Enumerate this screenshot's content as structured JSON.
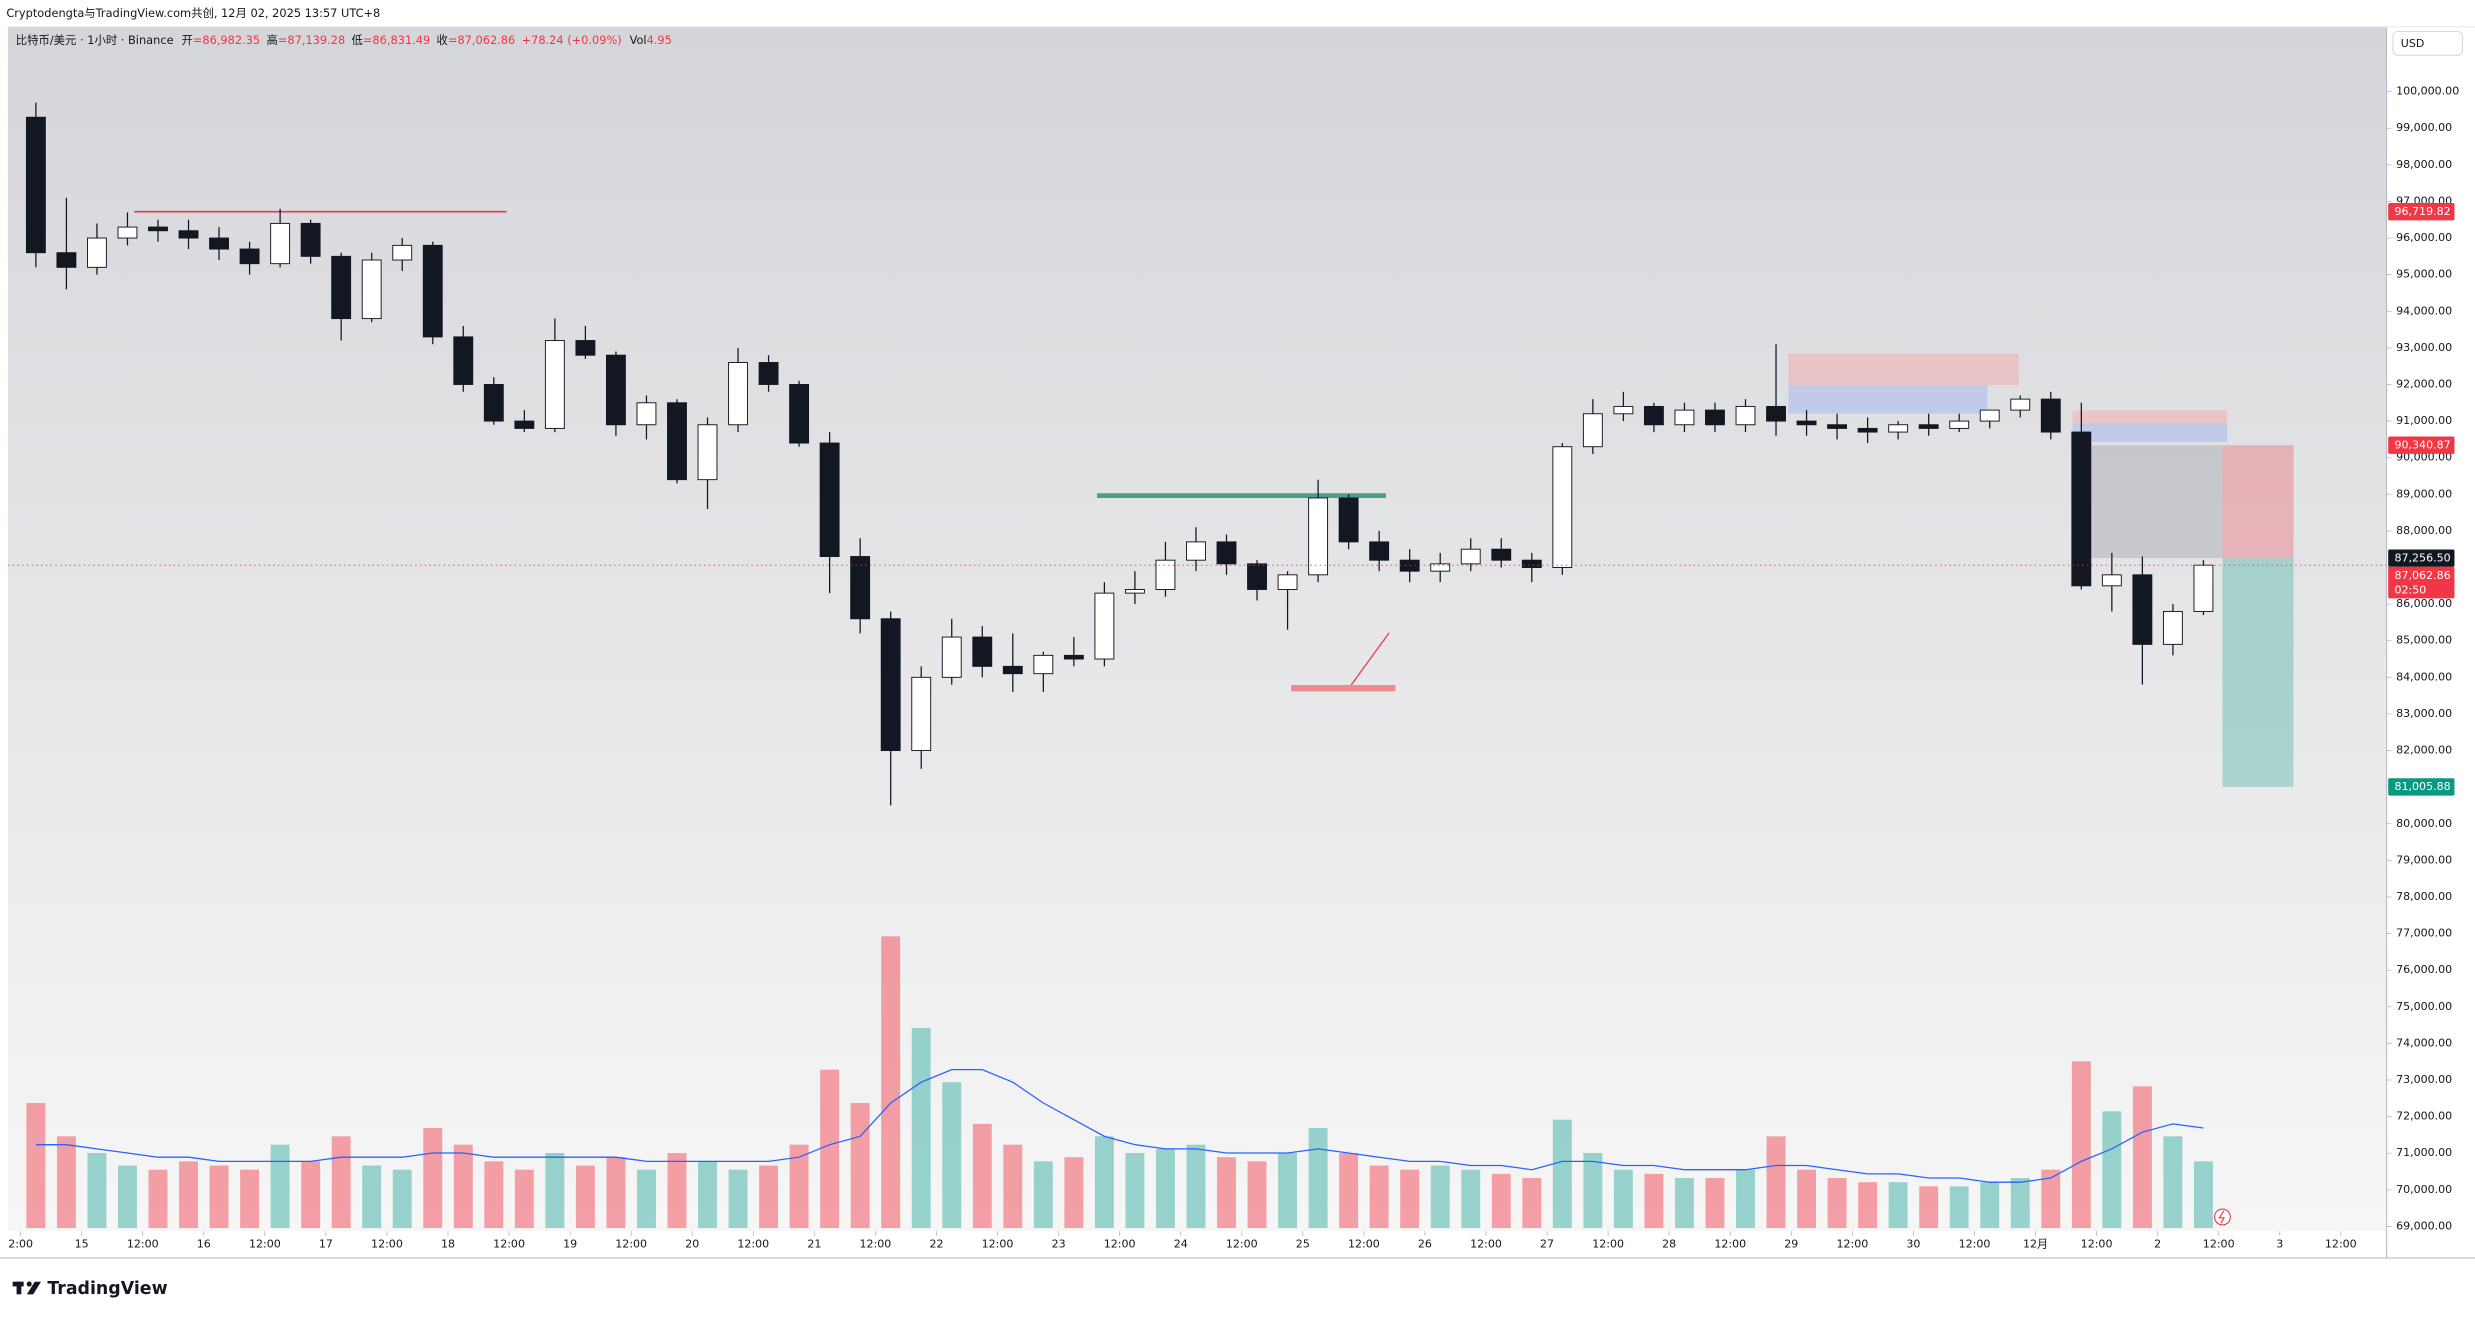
{
  "header": {
    "caption": "Cryptodengta与TradingView.com共创, 12月 02, 2025 13:57 UTC+8",
    "symbol": "比特币/美元 · 1小时 · Binance",
    "ohlc": [
      {
        "label": "开",
        "value": "=86,982.35"
      },
      {
        "label": "高",
        "value": "=87,139.28"
      },
      {
        "label": "低",
        "value": "=86,831.49"
      },
      {
        "label": "收",
        "value": "=87,062.86"
      }
    ],
    "change": "+78.24 (+0.09%)",
    "volume_label": "Vol",
    "volume_value": "4.95"
  },
  "footer": {
    "logo": "TradingView"
  },
  "chart_data": {
    "type": "candlestick",
    "currency": "USD",
    "grid": false,
    "up_color": "#ffffff",
    "down_color": "#131722",
    "wick_color": "#131722",
    "x": [
      3,
      9,
      15,
      21,
      27,
      33,
      39,
      45,
      51,
      57,
      63,
      69,
      75,
      81,
      87,
      93,
      99,
      105,
      111,
      117,
      123,
      129,
      135,
      141,
      147,
      153,
      159,
      165,
      171,
      177,
      183,
      189,
      195,
      201,
      207,
      213,
      219,
      225,
      231,
      237,
      243,
      249,
      255,
      261,
      267,
      273,
      279,
      285,
      291,
      297,
      303,
      309,
      315,
      321,
      327,
      333,
      339,
      345,
      351,
      357,
      363,
      369,
      375,
      381,
      387,
      393,
      399,
      405,
      411,
      417,
      423,
      429
    ],
    "open": [
      99300,
      95600,
      95200,
      96000,
      96300,
      96200,
      96000,
      95700,
      95300,
      96400,
      95500,
      93800,
      95400,
      95800,
      93300,
      92000,
      91000,
      90800,
      93200,
      92800,
      90900,
      91500,
      89400,
      90900,
      92600,
      92000,
      90400,
      87300,
      85600,
      82000,
      84000,
      85100,
      84300,
      84100,
      84600,
      84500,
      86300,
      86400,
      87200,
      87700,
      87100,
      86400,
      86800,
      88900,
      87700,
      87200,
      86900,
      87100,
      87500,
      87200,
      87000,
      90300,
      91200,
      91400,
      90900,
      91300,
      90900,
      91400,
      91000,
      90900,
      90800,
      90700,
      90900,
      90800,
      91000,
      91300,
      91600,
      90700,
      86500,
      86800,
      84900,
      85800
    ],
    "high": [
      99700,
      97100,
      96400,
      96700,
      96500,
      96500,
      96300,
      95900,
      96800,
      96500,
      95600,
      95600,
      96000,
      95900,
      93600,
      92200,
      91300,
      93800,
      93600,
      92900,
      91700,
      91600,
      91100,
      93000,
      92800,
      92100,
      90700,
      87800,
      85800,
      84300,
      85600,
      85400,
      85200,
      84700,
      85100,
      86600,
      86900,
      87700,
      88100,
      87900,
      87200,
      86900,
      89400,
      89000,
      88000,
      87500,
      87400,
      87800,
      87800,
      87400,
      90400,
      91600,
      91800,
      91500,
      91500,
      91500,
      91600,
      93100,
      91300,
      91200,
      91100,
      91000,
      91200,
      91200,
      91300,
      91700,
      91800,
      91500,
      87400,
      87300,
      86000,
      87200
    ],
    "low": [
      95200,
      94600,
      95000,
      95800,
      95900,
      95700,
      95400,
      95000,
      95200,
      95300,
      93200,
      93700,
      95100,
      93100,
      91800,
      90900,
      90700,
      90700,
      92700,
      90600,
      90500,
      89300,
      88600,
      90700,
      91800,
      90300,
      86300,
      85200,
      80500,
      81500,
      83800,
      84000,
      83600,
      83600,
      84300,
      84300,
      86000,
      86200,
      86900,
      86800,
      86100,
      85300,
      86600,
      87500,
      86900,
      86600,
      86600,
      86900,
      87000,
      86600,
      86800,
      90100,
      91000,
      90700,
      90700,
      90700,
      90700,
      90600,
      90600,
      90500,
      90400,
      90500,
      90600,
      90700,
      90800,
      91100,
      90500,
      86400,
      85800,
      83800,
      84600,
      85700
    ],
    "close": [
      95600,
      95200,
      96000,
      96300,
      96200,
      96000,
      95700,
      95300,
      96400,
      95500,
      93800,
      95400,
      95800,
      93300,
      92000,
      91000,
      90800,
      93200,
      92800,
      90900,
      91500,
      89400,
      90900,
      92600,
      92000,
      90400,
      87300,
      85600,
      82000,
      84000,
      85100,
      84300,
      84100,
      84600,
      84500,
      86300,
      86400,
      87200,
      87700,
      87100,
      86400,
      86800,
      88900,
      87700,
      87200,
      86900,
      87100,
      87500,
      87200,
      87000,
      90300,
      91200,
      91400,
      90900,
      91300,
      90900,
      91400,
      91000,
      90900,
      90800,
      90700,
      90900,
      90800,
      91000,
      91300,
      91600,
      90700,
      86500,
      86800,
      84900,
      85800,
      87062.86
    ],
    "volume": {
      "values": [
        30,
        22,
        18,
        15,
        14,
        16,
        15,
        14,
        20,
        16,
        22,
        15,
        14,
        24,
        20,
        16,
        14,
        18,
        15,
        17,
        14,
        18,
        16,
        14,
        15,
        20,
        38,
        30,
        70,
        48,
        35,
        25,
        20,
        16,
        17,
        22,
        18,
        19,
        20,
        17,
        16,
        18,
        24,
        18,
        15,
        14,
        15,
        14,
        13,
        12,
        26,
        18,
        14,
        13,
        12,
        12,
        14,
        22,
        14,
        12,
        11,
        11,
        10,
        10,
        11,
        12,
        14,
        40,
        28,
        34,
        22,
        16
      ],
      "ma": [
        20,
        20,
        19,
        18,
        17,
        17,
        16,
        16,
        16,
        16,
        17,
        17,
        17,
        18,
        18,
        17,
        17,
        17,
        17,
        17,
        16,
        16,
        16,
        16,
        16,
        17,
        20,
        22,
        30,
        35,
        38,
        38,
        35,
        30,
        26,
        22,
        20,
        19,
        19,
        18,
        18,
        18,
        19,
        18,
        17,
        16,
        16,
        15,
        15,
        14,
        16,
        16,
        15,
        15,
        14,
        14,
        14,
        15,
        15,
        14,
        13,
        13,
        12,
        12,
        11,
        11,
        12,
        16,
        19,
        23,
        25,
        24
      ],
      "ylim": [
        0,
        75
      ],
      "up_color": "#26a69a",
      "down_color": "#f23645",
      "ma_color": "#2962ff"
    },
    "xlim": [
      -2.5,
      465
    ],
    "ylim": [
      68870,
      101770
    ],
    "xticks": [
      {
        "value": 0,
        "label": "2:00"
      },
      {
        "value": 12,
        "label": "15"
      },
      {
        "value": 24,
        "label": "12:00"
      },
      {
        "value": 36,
        "label": "16"
      },
      {
        "value": 48,
        "label": "12:00"
      },
      {
        "value": 60,
        "label": "17"
      },
      {
        "value": 72,
        "label": "12:00"
      },
      {
        "value": 84,
        "label": "18"
      },
      {
        "value": 96,
        "label": "12:00"
      },
      {
        "value": 108,
        "label": "19"
      },
      {
        "value": 120,
        "label": "12:00"
      },
      {
        "value": 132,
        "label": "20"
      },
      {
        "value": 144,
        "label": "12:00"
      },
      {
        "value": 156,
        "label": "21"
      },
      {
        "value": 168,
        "label": "12:00"
      },
      {
        "value": 180,
        "label": "22"
      },
      {
        "value": 192,
        "label": "12:00"
      },
      {
        "value": 204,
        "label": "23"
      },
      {
        "value": 216,
        "label": "12:00"
      },
      {
        "value": 228,
        "label": "24"
      },
      {
        "value": 240,
        "label": "12:00"
      },
      {
        "value": 252,
        "label": "25"
      },
      {
        "value": 264,
        "label": "12:00"
      },
      {
        "value": 276,
        "label": "26"
      },
      {
        "value": 288,
        "label": "12:00"
      },
      {
        "value": 300,
        "label": "27"
      },
      {
        "value": 312,
        "label": "12:00"
      },
      {
        "value": 324,
        "label": "28"
      },
      {
        "value": 336,
        "label": "12:00"
      },
      {
        "value": 348,
        "label": "29"
      },
      {
        "value": 360,
        "label": "12:00"
      },
      {
        "value": 372,
        "label": "30"
      },
      {
        "value": 384,
        "label": "12:00"
      },
      {
        "value": 396,
        "label": "12月"
      },
      {
        "value": 408,
        "label": "12:00"
      },
      {
        "value": 420,
        "label": "2"
      },
      {
        "value": 432,
        "label": "12:00"
      },
      {
        "value": 444,
        "label": "3"
      },
      {
        "value": 456,
        "label": "12:00"
      }
    ],
    "yticks": [
      {
        "value": 69000,
        "label": "69,000.00"
      },
      {
        "value": 70000,
        "label": "70,000.00"
      },
      {
        "value": 71000,
        "label": "71,000.00"
      },
      {
        "value": 72000,
        "label": "72,000.00"
      },
      {
        "value": 73000,
        "label": "73,000.00"
      },
      {
        "value": 74000,
        "label": "74,000.00"
      },
      {
        "value": 75000,
        "label": "75,000.00"
      },
      {
        "value": 76000,
        "label": "76,000.00"
      },
      {
        "value": 77000,
        "label": "77,000.00"
      },
      {
        "value": 78000,
        "label": "78,000.00"
      },
      {
        "value": 79000,
        "label": "79,000.00"
      },
      {
        "value": 80000,
        "label": "80,000.00"
      },
      {
        "value": 81000,
        "label": "81,000.00"
      },
      {
        "value": 82000,
        "label": "82,000.00"
      },
      {
        "value": 83000,
        "label": "83,000.00"
      },
      {
        "value": 84000,
        "label": "84,000.00"
      },
      {
        "value": 85000,
        "label": "85,000.00"
      },
      {
        "value": 86000,
        "label": "86,000.00"
      },
      {
        "value": 87000,
        "label": "87,000.00"
      },
      {
        "value": 88000,
        "label": "88,000.00"
      },
      {
        "value": 89000,
        "label": "89,000.00"
      },
      {
        "value": 90000,
        "label": "90,000.00"
      },
      {
        "value": 91000,
        "label": "91,000.00"
      },
      {
        "value": 92000,
        "label": "92,000.00"
      },
      {
        "value": 93000,
        "label": "93,000.00"
      },
      {
        "value": 94000,
        "label": "94,000.00"
      },
      {
        "value": 95000,
        "label": "95,000.00"
      },
      {
        "value": 96000,
        "label": "96,000.00"
      },
      {
        "value": 97000,
        "label": "97,000.00"
      },
      {
        "value": 98000,
        "label": "98,000.00"
      },
      {
        "value": 99000,
        "label": "99,000.00"
      },
      {
        "value": 100000,
        "label": "100,000.00"
      }
    ],
    "price_labels": [
      {
        "value": 96719.82,
        "label": "96,719.82",
        "color": "#f23645"
      },
      {
        "value": 90340.87,
        "label": "90,340.87",
        "color": "#f23645"
      },
      {
        "value": 87256.5,
        "label": "87,256.50",
        "color": "#131722"
      },
      {
        "value": 87062.86,
        "label": "87,062.86",
        "color": "#f23645",
        "countdown": "02:50"
      },
      {
        "value": 81005.88,
        "label": "81,005.88",
        "color": "#089981"
      }
    ]
  }
}
